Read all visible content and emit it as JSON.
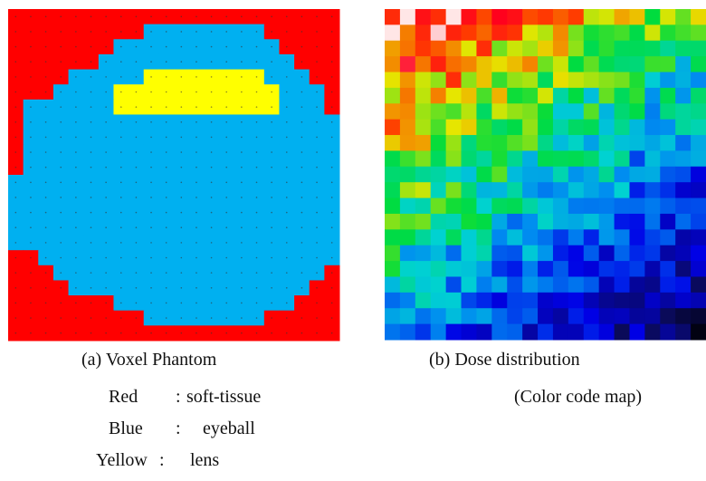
{
  "panels": [
    {
      "caption": "(a) Voxel Phantom",
      "legend": [
        [
          "Red",
          ":",
          "soft-tissue"
        ],
        [
          "Blue",
          ":",
          "eyeball"
        ],
        [
          "Yellow",
          ":",
          "lens"
        ]
      ]
    },
    {
      "caption": "(b) Dose distribution",
      "note": "(Color code map)"
    }
  ]
}
